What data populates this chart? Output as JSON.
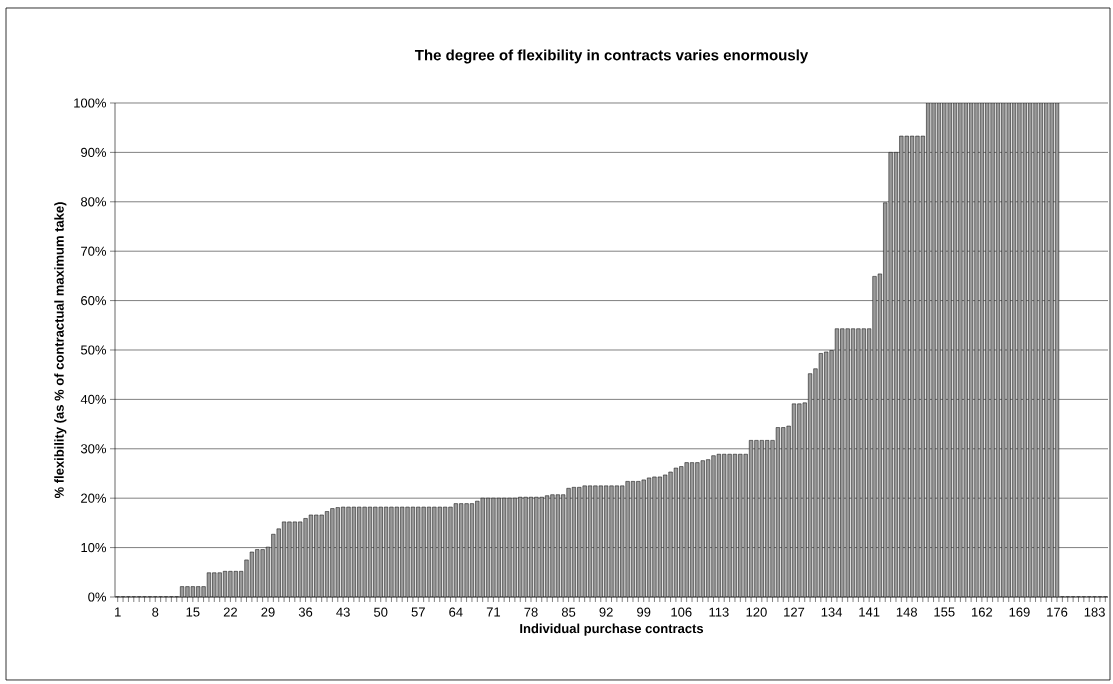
{
  "chart_data": {
    "type": "bar",
    "title": "The degree of flexibility in contracts varies enormously",
    "xlabel": "Individual purchase contracts",
    "ylabel": "% flexibility (as % of contractual maximum take)",
    "categories": [
      "1",
      null,
      null,
      null,
      null,
      null,
      null,
      "8",
      null,
      null,
      null,
      null,
      null,
      null,
      "15",
      null,
      null,
      null,
      null,
      null,
      null,
      "22",
      null,
      null,
      null,
      null,
      null,
      null,
      "29",
      null,
      null,
      null,
      null,
      null,
      null,
      "36",
      null,
      null,
      null,
      null,
      null,
      null,
      "43",
      null,
      null,
      null,
      null,
      null,
      null,
      "50",
      null,
      null,
      null,
      null,
      null,
      null,
      "57",
      null,
      null,
      null,
      null,
      null,
      null,
      "64",
      null,
      null,
      null,
      null,
      null,
      null,
      "71",
      null,
      null,
      null,
      null,
      null,
      null,
      "78",
      null,
      null,
      null,
      null,
      null,
      null,
      "85",
      null,
      null,
      null,
      null,
      null,
      null,
      "92",
      null,
      null,
      null,
      null,
      null,
      null,
      "99",
      null,
      null,
      null,
      null,
      null,
      null,
      "106",
      null,
      null,
      null,
      null,
      null,
      null,
      "113",
      null,
      null,
      null,
      null,
      null,
      null,
      "120",
      null,
      null,
      null,
      null,
      null,
      null,
      "127",
      null,
      null,
      null,
      null,
      null,
      null,
      "134",
      null,
      null,
      null,
      null,
      null,
      null,
      "141",
      null,
      null,
      null,
      null,
      null,
      null,
      "148",
      null,
      null,
      null,
      null,
      null,
      null,
      "155",
      null,
      null,
      null,
      null,
      null,
      null,
      "162",
      null,
      null,
      null,
      null,
      null,
      null,
      "169",
      null,
      null,
      null,
      null,
      null,
      null,
      "176",
      null,
      null,
      null,
      null,
      null,
      null,
      "183",
      null,
      null
    ],
    "values": [
      0,
      0,
      0,
      0,
      0,
      0,
      0,
      0,
      0,
      0,
      0,
      0,
      2.1,
      2.1,
      2.1,
      2.1,
      2.1,
      4.9,
      4.9,
      4.9,
      5.2,
      5.2,
      5.2,
      5.2,
      7.5,
      9.1,
      9.6,
      9.6,
      10.1,
      12.7,
      13.8,
      15.2,
      15.2,
      15.2,
      15.2,
      15.9,
      16.6,
      16.6,
      16.6,
      17.3,
      17.9,
      18.1,
      18.2,
      18.2,
      18.2,
      18.2,
      18.2,
      18.2,
      18.2,
      18.2,
      18.2,
      18.2,
      18.2,
      18.2,
      18.2,
      18.2,
      18.2,
      18.2,
      18.2,
      18.2,
      18.2,
      18.2,
      18.2,
      18.9,
      18.9,
      18.9,
      18.9,
      19.4,
      20.0,
      20.0,
      20.0,
      20.0,
      20.0,
      20.0,
      20.0,
      20.2,
      20.2,
      20.2,
      20.2,
      20.2,
      20.5,
      20.7,
      20.7,
      20.7,
      22.0,
      22.2,
      22.2,
      22.5,
      22.5,
      22.5,
      22.5,
      22.5,
      22.5,
      22.5,
      22.5,
      23.4,
      23.4,
      23.4,
      23.7,
      24.1,
      24.3,
      24.3,
      24.7,
      25.3,
      26.1,
      26.4,
      27.2,
      27.2,
      27.2,
      27.6,
      27.8,
      28.6,
      28.9,
      28.9,
      28.9,
      28.9,
      28.9,
      28.9,
      31.7,
      31.7,
      31.7,
      31.7,
      31.7,
      34.3,
      34.3,
      34.6,
      39.1,
      39.1,
      39.3,
      45.2,
      46.2,
      49.3,
      49.6,
      49.9,
      54.3,
      54.3,
      54.3,
      54.3,
      54.3,
      54.3,
      54.3,
      64.9,
      65.4,
      79.8,
      90.0,
      90.0,
      93.3,
      93.3,
      93.3,
      93.3,
      93.3,
      100,
      100,
      100,
      100,
      100,
      100,
      100,
      100,
      100,
      100,
      100,
      100,
      100,
      100,
      100,
      100,
      100,
      100,
      100,
      100,
      100,
      100,
      100,
      100,
      100,
      0,
      0,
      0,
      0,
      0,
      0,
      0,
      0,
      0
    ],
    "color": "#999999",
    "ylim": [
      0,
      100
    ],
    "yticks": [
      {
        "value": 0,
        "label": "0%"
      },
      {
        "value": 10,
        "label": "10%"
      },
      {
        "value": 20,
        "label": "20%"
      },
      {
        "value": 30,
        "label": "30%"
      },
      {
        "value": 40,
        "label": "40%"
      },
      {
        "value": 50,
        "label": "50%"
      },
      {
        "value": 60,
        "label": "60%"
      },
      {
        "value": 70,
        "label": "70%"
      },
      {
        "value": 80,
        "label": "80%"
      },
      {
        "value": 90,
        "label": "90%"
      },
      {
        "value": 100,
        "label": "100%"
      }
    ],
    "grid": "y"
  }
}
